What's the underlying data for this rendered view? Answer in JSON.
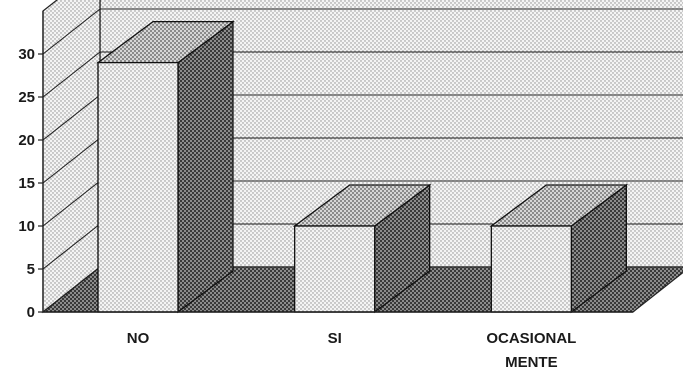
{
  "chart_data": {
    "type": "bar",
    "categories": [
      "NO",
      "SI",
      "OCASIONAL MENTE"
    ],
    "category_lines": [
      [
        "NO"
      ],
      [
        "SI"
      ],
      [
        "OCASIONAL",
        "MENTE"
      ]
    ],
    "values": [
      29,
      10,
      10
    ],
    "yticks": [
      "0",
      "5",
      "10",
      "15",
      "20",
      "25",
      "30"
    ],
    "ylim": [
      0,
      35
    ],
    "grid": true,
    "style": "3d"
  }
}
